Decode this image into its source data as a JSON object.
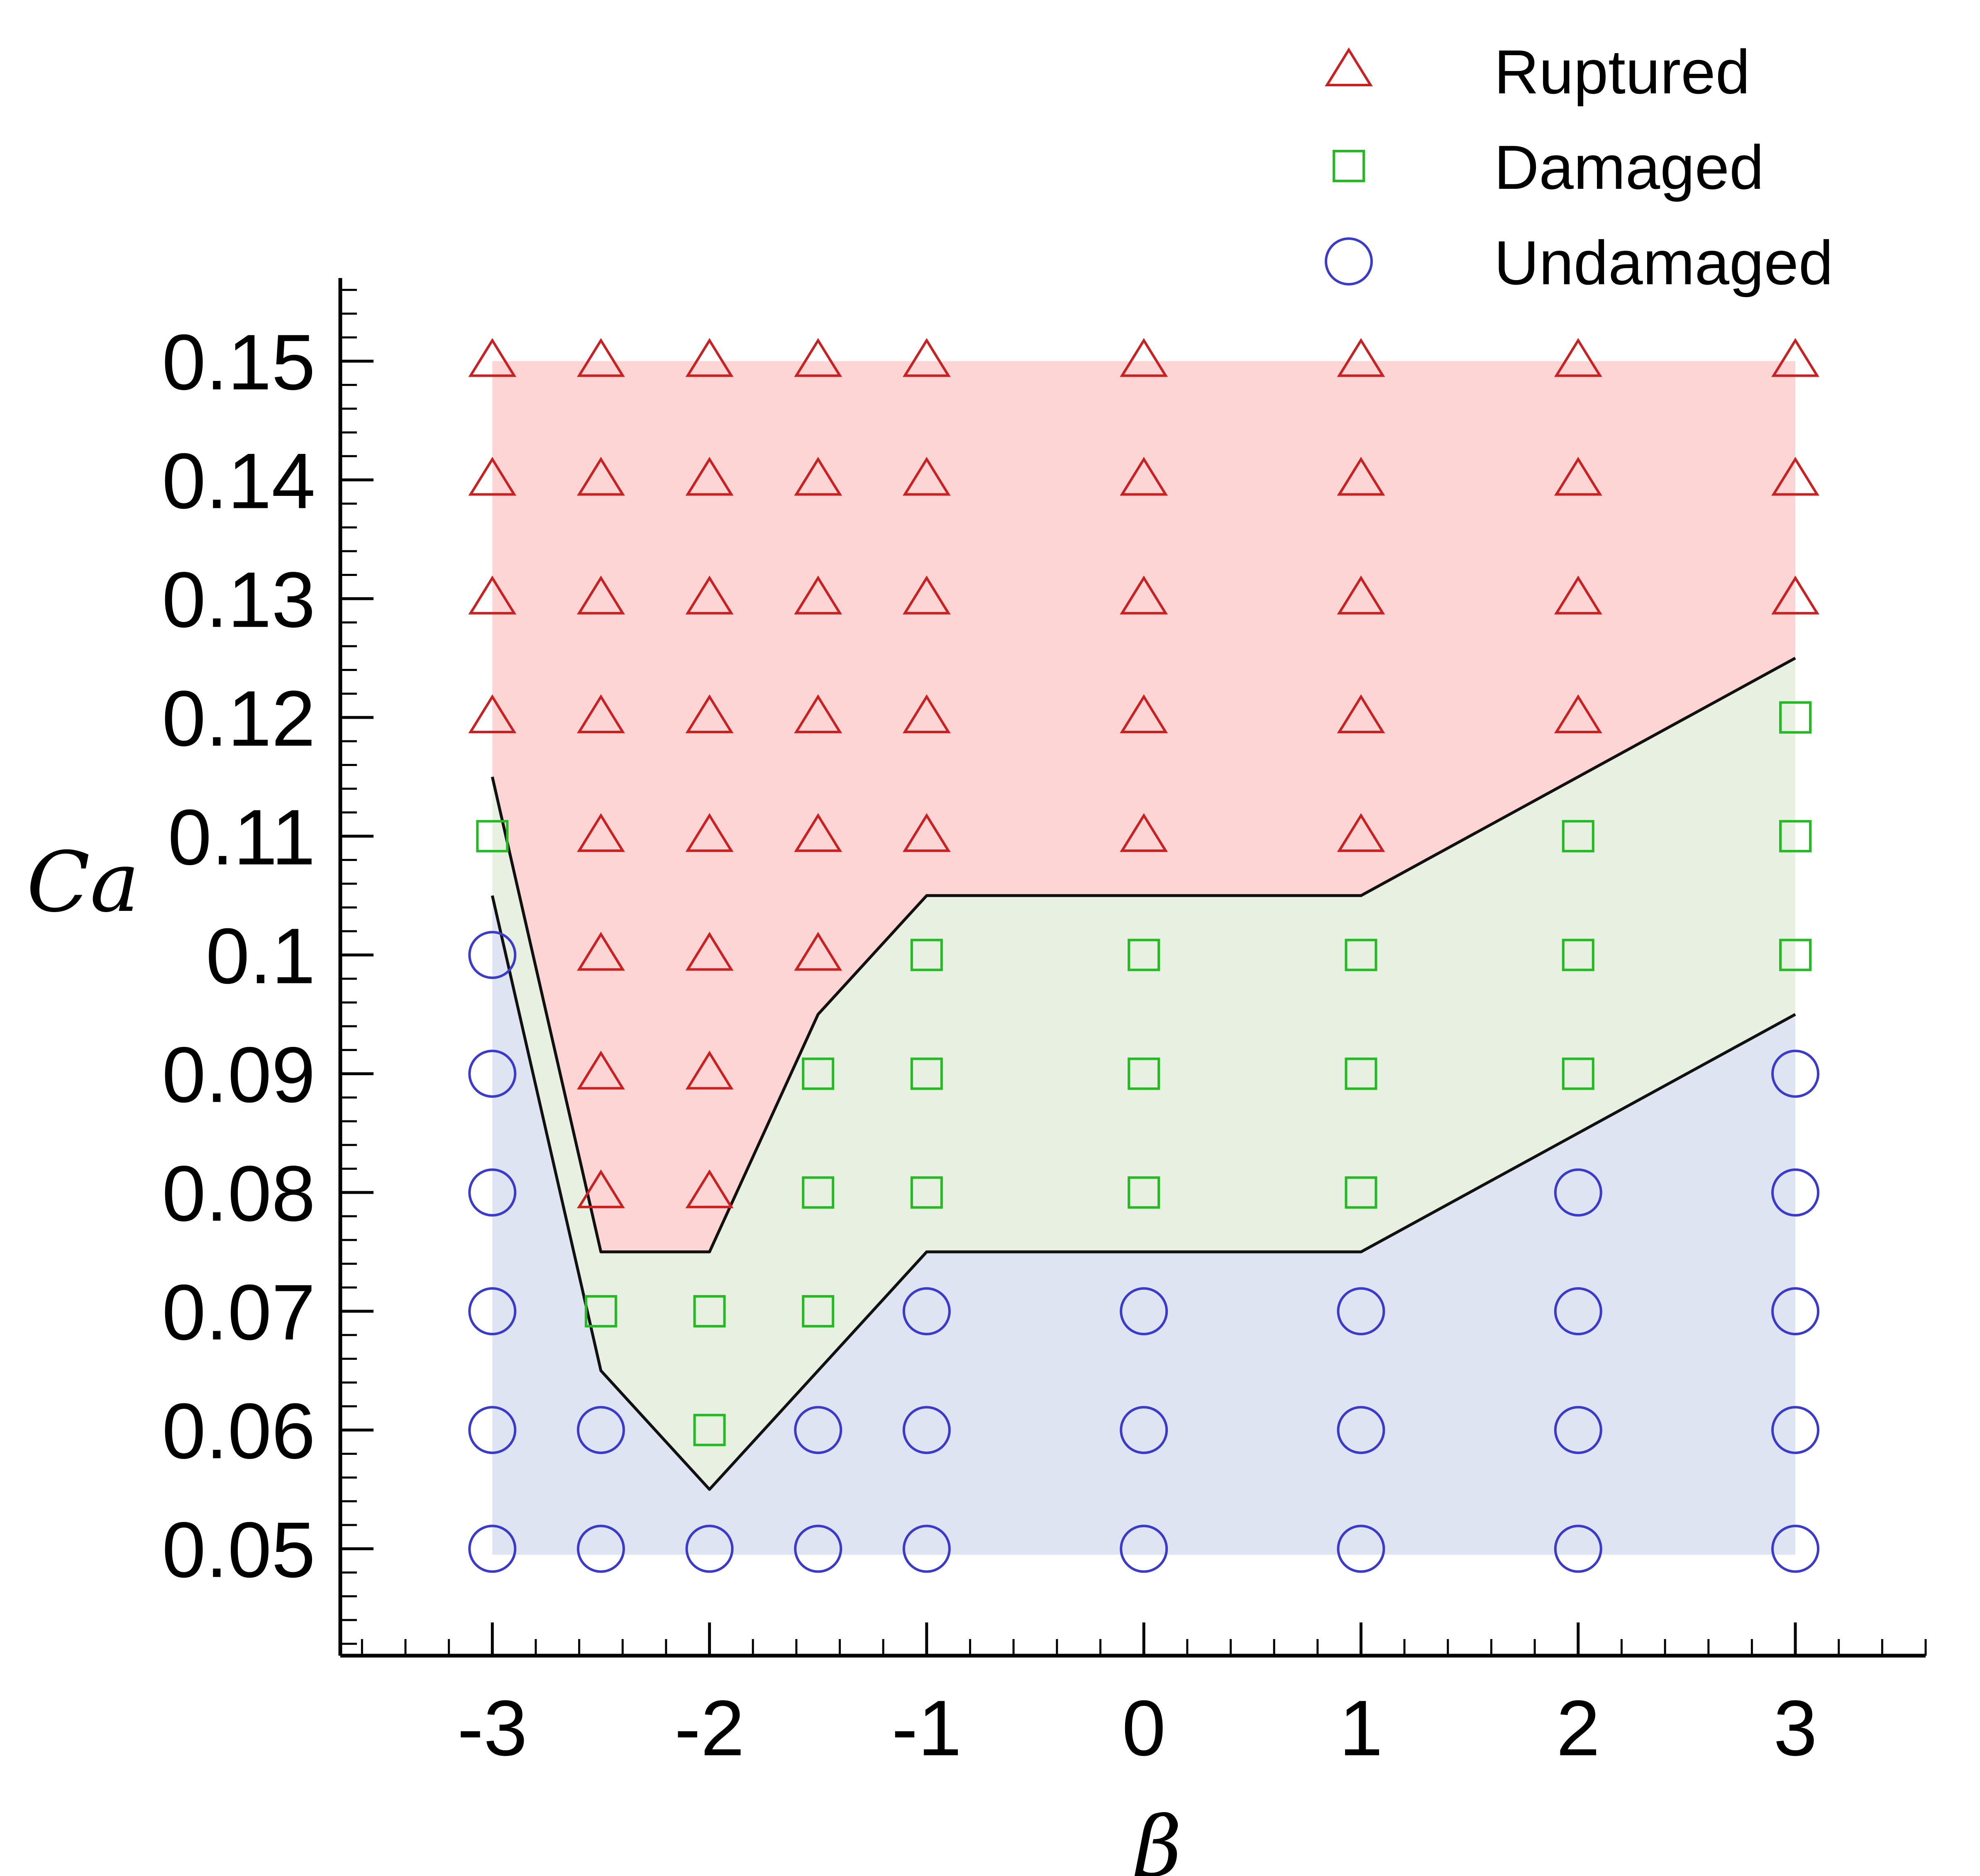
{
  "chart_data": {
    "type": "scatter",
    "title": "",
    "xlabel": "β",
    "ylabel": "Ca",
    "xlim": [
      -3.7,
      3.6
    ],
    "ylim": [
      0.041,
      0.157
    ],
    "x_ticks": [
      "-3",
      "-2",
      "-1",
      "0",
      "1",
      "2",
      "3"
    ],
    "y_ticks": [
      "0.05",
      "0.06",
      "0.07",
      "0.08",
      "0.09",
      "0.1",
      "0.11",
      "0.12",
      "0.13",
      "0.14",
      "0.15"
    ],
    "legend_position": "top-right",
    "series": [
      {
        "name": "Ruptured",
        "marker": "triangle",
        "color": "#cc1f1f",
        "points": [
          [
            -3,
            0.15
          ],
          [
            -3,
            0.14
          ],
          [
            -3,
            0.13
          ],
          [
            -3,
            0.12
          ],
          [
            -2.5,
            0.15
          ],
          [
            -2.5,
            0.14
          ],
          [
            -2.5,
            0.13
          ],
          [
            -2.5,
            0.12
          ],
          [
            -2.5,
            0.11
          ],
          [
            -2.5,
            0.1
          ],
          [
            -2.5,
            0.09
          ],
          [
            -2.5,
            0.08
          ],
          [
            -2,
            0.15
          ],
          [
            -2,
            0.14
          ],
          [
            -2,
            0.13
          ],
          [
            -2,
            0.12
          ],
          [
            -2,
            0.11
          ],
          [
            -2,
            0.1
          ],
          [
            -2,
            0.09
          ],
          [
            -2,
            0.08
          ],
          [
            -1.5,
            0.15
          ],
          [
            -1.5,
            0.14
          ],
          [
            -1.5,
            0.13
          ],
          [
            -1.5,
            0.12
          ],
          [
            -1.5,
            0.11
          ],
          [
            -1.5,
            0.1
          ],
          [
            -1,
            0.15
          ],
          [
            -1,
            0.14
          ],
          [
            -1,
            0.13
          ],
          [
            -1,
            0.12
          ],
          [
            -1,
            0.11
          ],
          [
            0,
            0.15
          ],
          [
            0,
            0.14
          ],
          [
            0,
            0.13
          ],
          [
            0,
            0.12
          ],
          [
            0,
            0.11
          ],
          [
            1,
            0.15
          ],
          [
            1,
            0.14
          ],
          [
            1,
            0.13
          ],
          [
            1,
            0.12
          ],
          [
            1,
            0.11
          ],
          [
            2,
            0.15
          ],
          [
            2,
            0.14
          ],
          [
            2,
            0.13
          ],
          [
            2,
            0.12
          ],
          [
            3,
            0.15
          ],
          [
            3,
            0.14
          ],
          [
            3,
            0.13
          ]
        ]
      },
      {
        "name": "Damaged",
        "marker": "square",
        "color": "#22bb22",
        "points": [
          [
            -3,
            0.11
          ],
          [
            -2.5,
            0.07
          ],
          [
            -2,
            0.07
          ],
          [
            -2,
            0.06
          ],
          [
            -1.5,
            0.09
          ],
          [
            -1.5,
            0.08
          ],
          [
            -1.5,
            0.07
          ],
          [
            -1,
            0.1
          ],
          [
            -1,
            0.09
          ],
          [
            -1,
            0.08
          ],
          [
            0,
            0.1
          ],
          [
            0,
            0.09
          ],
          [
            0,
            0.08
          ],
          [
            1,
            0.1
          ],
          [
            1,
            0.09
          ],
          [
            1,
            0.08
          ],
          [
            2,
            0.11
          ],
          [
            2,
            0.1
          ],
          [
            2,
            0.09
          ],
          [
            3,
            0.12
          ],
          [
            3,
            0.11
          ],
          [
            3,
            0.1
          ]
        ]
      },
      {
        "name": "Undamaged",
        "marker": "circle",
        "color": "#3a3acc",
        "points": [
          [
            -3,
            0.1
          ],
          [
            -3,
            0.09
          ],
          [
            -3,
            0.08
          ],
          [
            -3,
            0.07
          ],
          [
            -3,
            0.06
          ],
          [
            -3,
            0.05
          ],
          [
            -2.5,
            0.06
          ],
          [
            -2.5,
            0.05
          ],
          [
            -2,
            0.05
          ],
          [
            -1.5,
            0.06
          ],
          [
            -1.5,
            0.05
          ],
          [
            -1,
            0.07
          ],
          [
            -1,
            0.06
          ],
          [
            -1,
            0.05
          ],
          [
            0,
            0.07
          ],
          [
            0,
            0.06
          ],
          [
            0,
            0.05
          ],
          [
            1,
            0.07
          ],
          [
            1,
            0.06
          ],
          [
            1,
            0.05
          ],
          [
            2,
            0.08
          ],
          [
            2,
            0.07
          ],
          [
            2,
            0.06
          ],
          [
            2,
            0.05
          ],
          [
            3,
            0.09
          ],
          [
            3,
            0.08
          ],
          [
            3,
            0.07
          ],
          [
            3,
            0.06
          ],
          [
            3,
            0.05
          ]
        ]
      }
    ],
    "boundaries": [
      {
        "name": "rupture-boundary",
        "points": [
          [
            -3,
            0.115
          ],
          [
            -2.5,
            0.075
          ],
          [
            -2,
            0.075
          ],
          [
            -1.5,
            0.095
          ],
          [
            -1,
            0.105
          ],
          [
            1,
            0.105
          ],
          [
            3,
            0.125
          ]
        ]
      },
      {
        "name": "damage-boundary",
        "points": [
          [
            -3,
            0.105
          ],
          [
            -2.5,
            0.065
          ],
          [
            -2,
            0.055
          ],
          [
            -1,
            0.075
          ],
          [
            1,
            0.075
          ],
          [
            3,
            0.095
          ]
        ]
      }
    ],
    "regions": [
      {
        "name": "ruptured-region",
        "color": "#fdd5d5"
      },
      {
        "name": "damaged-region",
        "color": "#e8f1e1"
      },
      {
        "name": "undamaged-region",
        "color": "#dfe4f2"
      }
    ],
    "region_extent": {
      "x": [
        -3,
        3
      ],
      "y": [
        0.0495,
        0.15
      ]
    }
  }
}
